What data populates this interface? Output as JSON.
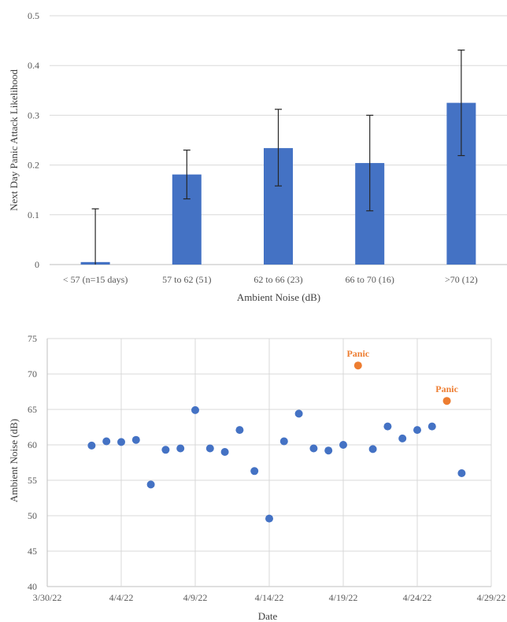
{
  "colors": {
    "bar": "#4472C4",
    "point": "#4472C4",
    "highlight": "#ED7D31",
    "grid": "#D9D9D9",
    "axis": "#BFBFBF",
    "error_bar": "#262626"
  },
  "chart_data": [
    {
      "type": "bar",
      "title": "",
      "xlabel": "Ambient Noise (dB)",
      "ylabel": "Next Day Panic Attack Likelihood",
      "categories": [
        "< 57 (n=15 days)",
        "57 to 62 (51)",
        "62 to 66 (23)",
        "66 to 70 (16)",
        ">70 (12)"
      ],
      "values": [
        0.005,
        0.181,
        0.234,
        0.204,
        0.325
      ],
      "error_low": [
        0.0,
        0.132,
        0.158,
        0.108,
        0.219
      ],
      "error_high": [
        0.112,
        0.23,
        0.312,
        0.3,
        0.431
      ],
      "ylim": [
        0,
        0.5
      ],
      "yticks": [
        "0",
        "0.1",
        "0.2",
        "0.3",
        "0.4",
        "0.5"
      ],
      "grid": "horizontal"
    },
    {
      "type": "scatter",
      "title": "",
      "xlabel": "Date",
      "ylabel": "Ambient Noise (dB)",
      "xticks": [
        "3/30/22",
        "4/4/22",
        "4/9/22",
        "4/14/22",
        "4/19/22",
        "4/24/22",
        "4/29/22"
      ],
      "xlim": [
        "2022-03-30",
        "2022-04-29"
      ],
      "ylim": [
        40,
        75
      ],
      "yticks": [
        "40",
        "45",
        "50",
        "55",
        "60",
        "65",
        "70",
        "75"
      ],
      "grid": "both",
      "points": [
        {
          "x": "2022-04-02",
          "y": 59.9
        },
        {
          "x": "2022-04-03",
          "y": 60.5
        },
        {
          "x": "2022-04-04",
          "y": 60.4
        },
        {
          "x": "2022-04-05",
          "y": 60.7
        },
        {
          "x": "2022-04-06",
          "y": 54.4
        },
        {
          "x": "2022-04-07",
          "y": 59.3
        },
        {
          "x": "2022-04-08",
          "y": 59.5
        },
        {
          "x": "2022-04-09",
          "y": 64.9
        },
        {
          "x": "2022-04-10",
          "y": 59.5
        },
        {
          "x": "2022-04-11",
          "y": 59.0
        },
        {
          "x": "2022-04-12",
          "y": 62.1
        },
        {
          "x": "2022-04-13",
          "y": 56.3
        },
        {
          "x": "2022-04-14",
          "y": 49.6
        },
        {
          "x": "2022-04-15",
          "y": 60.5
        },
        {
          "x": "2022-04-16",
          "y": 64.4
        },
        {
          "x": "2022-04-17",
          "y": 59.5
        },
        {
          "x": "2022-04-18",
          "y": 59.2
        },
        {
          "x": "2022-04-19",
          "y": 60.0
        },
        {
          "x": "2022-04-20",
          "y": 71.2,
          "label": "Panic"
        },
        {
          "x": "2022-04-21",
          "y": 59.4
        },
        {
          "x": "2022-04-22",
          "y": 62.6
        },
        {
          "x": "2022-04-23",
          "y": 60.9
        },
        {
          "x": "2022-04-24",
          "y": 62.1
        },
        {
          "x": "2022-04-25",
          "y": 62.6
        },
        {
          "x": "2022-04-26",
          "y": 66.2,
          "label": "Panic"
        },
        {
          "x": "2022-04-27",
          "y": 56.0
        }
      ]
    }
  ]
}
